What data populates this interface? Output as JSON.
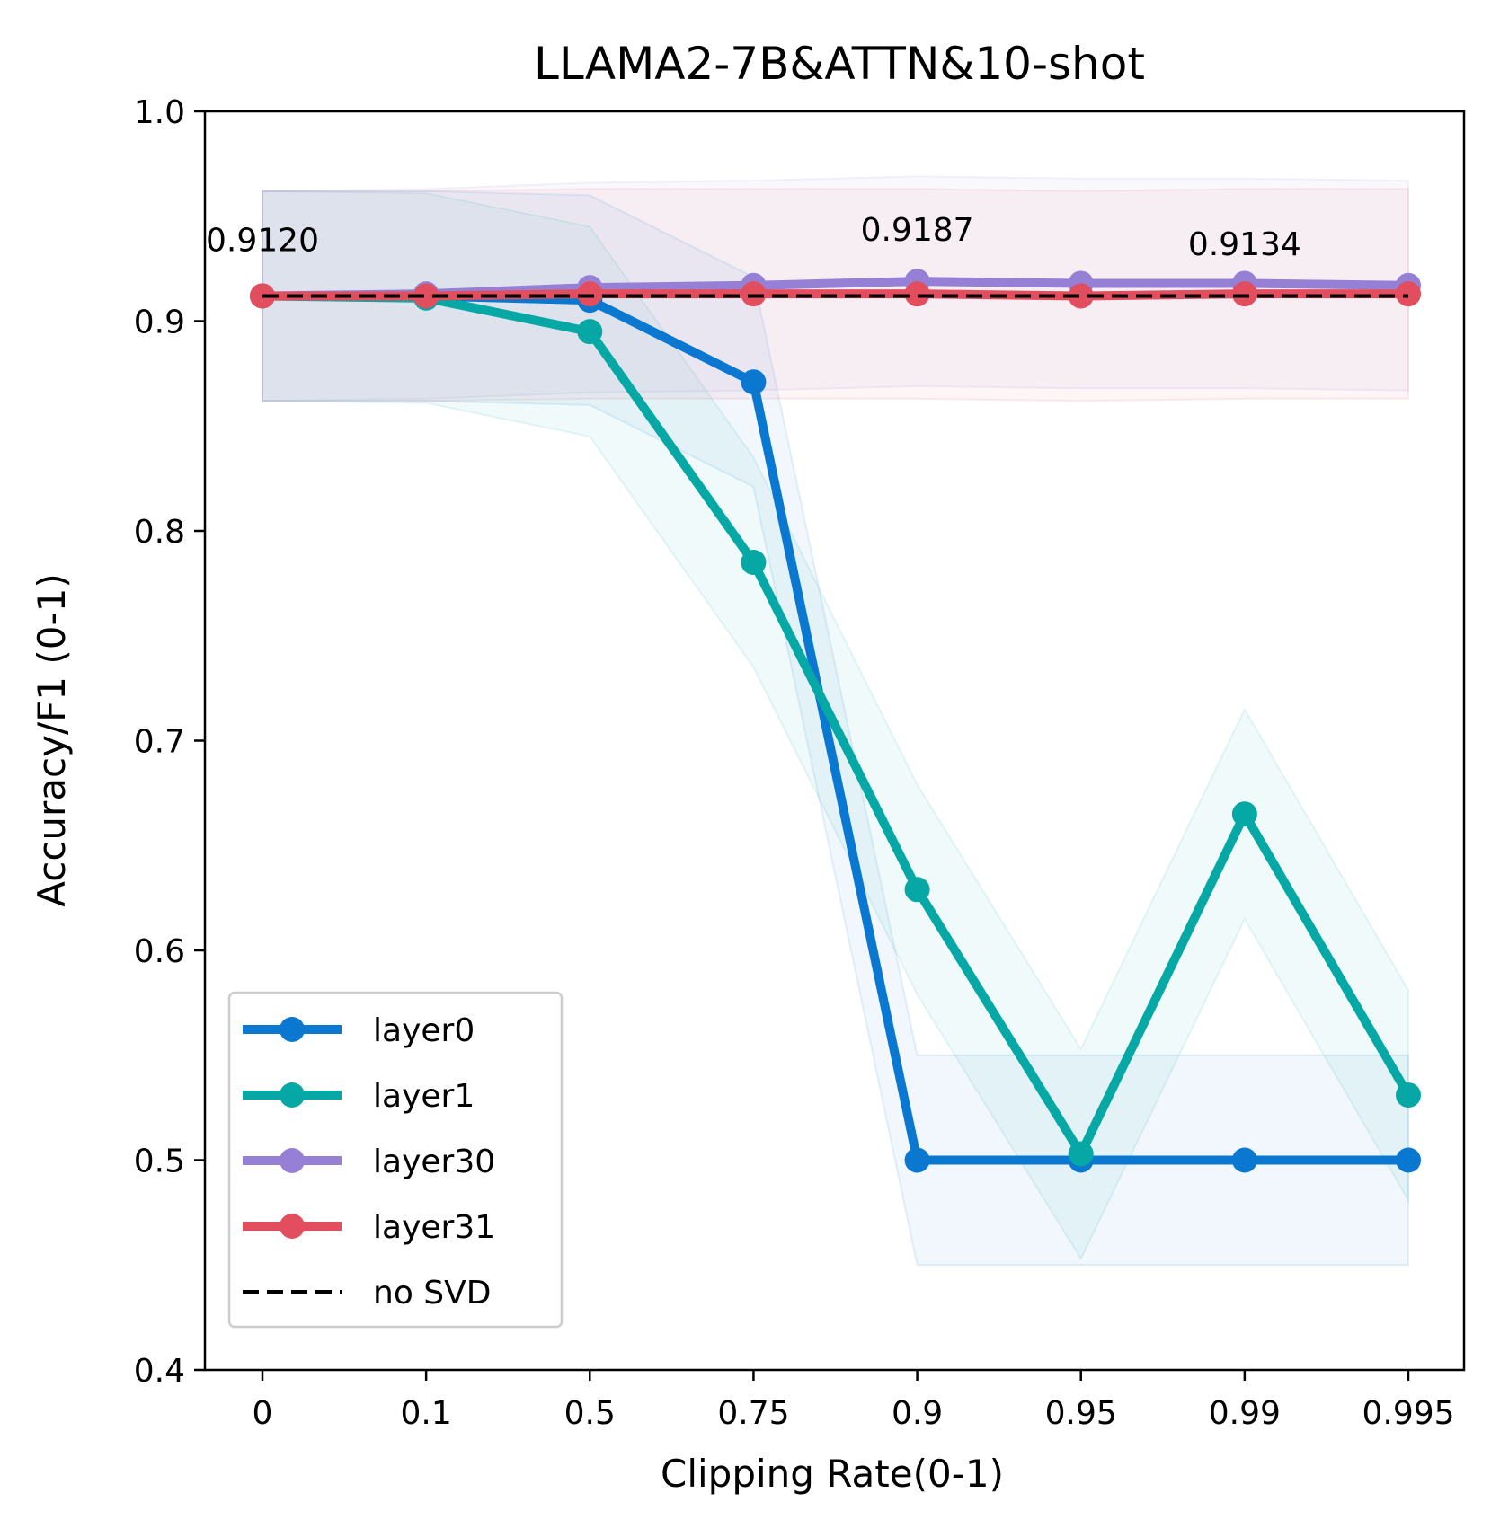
{
  "chart_data": {
    "type": "line",
    "title": "LLAMA2-7B&ATTN&10-shot",
    "xlabel": "Clipping Rate(0-1)",
    "ylabel": "Accuracy/F1 (0-1)",
    "categories": [
      "0",
      "0.1",
      "0.5",
      "0.75",
      "0.9",
      "0.95",
      "0.99",
      "0.995"
    ],
    "ylim": [
      0.4,
      1.0
    ],
    "yticks": [
      "0.4",
      "0.5",
      "0.6",
      "0.7",
      "0.8",
      "0.9",
      "1.0"
    ],
    "grid": false,
    "legend_position": "lower-left",
    "series": [
      {
        "name": "layer0",
        "color": "#0a77d0",
        "values": [
          0.912,
          0.912,
          0.91,
          0.871,
          0.5,
          0.5,
          0.5,
          0.5
        ],
        "band": 0.05
      },
      {
        "name": "layer1",
        "color": "#05a8a5",
        "values": [
          0.912,
          0.911,
          0.895,
          0.785,
          0.629,
          0.503,
          0.665,
          0.531
        ],
        "band": 0.05
      },
      {
        "name": "layer30",
        "color": "#9580d6",
        "values": [
          0.912,
          0.913,
          0.916,
          0.917,
          0.919,
          0.918,
          0.918,
          0.917
        ],
        "band": 0.05
      },
      {
        "name": "layer31",
        "color": "#e34e5f",
        "values": [
          0.912,
          0.912,
          0.913,
          0.913,
          0.913,
          0.912,
          0.913,
          0.913
        ],
        "band": 0.05
      }
    ],
    "reference_line": {
      "name": "no SVD",
      "value": 0.912,
      "color": "#000000",
      "style": "dashed"
    },
    "annotations": [
      {
        "text": "0.9120",
        "x_index": 0,
        "y": 0.939
      },
      {
        "text": "0.9187",
        "x_index": 4,
        "y": 0.944
      },
      {
        "text": "0.9134",
        "x_index": 6,
        "y": 0.937
      }
    ]
  }
}
